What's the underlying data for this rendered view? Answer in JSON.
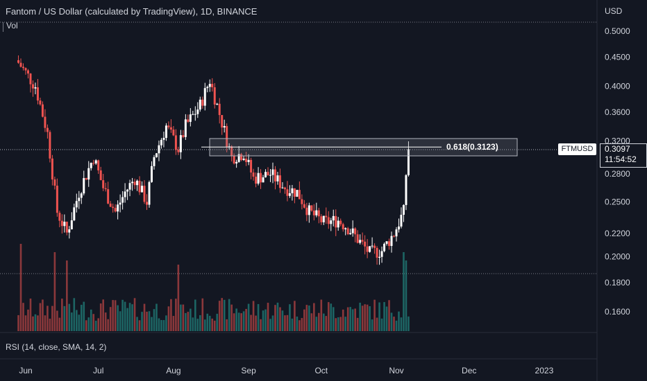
{
  "header": {
    "title": "Fantom / US Dollar (calculated by TradingView), 1D, BINANCE",
    "volume_label": "Vol",
    "currency_label": "USD",
    "indicator_label": "RSI (14, close, SMA, 14, 2)"
  },
  "price_axis": {
    "ticks": [
      "0.5000",
      "0.4500",
      "0.4000",
      "0.3600",
      "0.3200",
      "0.2800",
      "0.2500",
      "0.2200",
      "0.2000",
      "0.1800",
      "0.1600"
    ],
    "ticker": "FTMUSD",
    "last_price": "0.3097",
    "countdown": "11:54:52"
  },
  "time_axis": {
    "ticks": [
      "Jun",
      "Jul",
      "Aug",
      "Sep",
      "Oct",
      "Nov",
      "Dec",
      "2023"
    ]
  },
  "fib": {
    "label": "0.618(0.3123)",
    "level": 0.3123
  },
  "colors": {
    "background": "#131722",
    "up": "#ffffff",
    "down": "#ef5350",
    "vol_up": "#26a69a",
    "vol_down": "#ef5350"
  },
  "chart_data": {
    "type": "candlestick",
    "scale": "log",
    "ylim": [
      0.145,
      0.55
    ],
    "key_points": [
      {
        "date": "2022-05-29",
        "close": 0.44
      },
      {
        "date": "2022-06-05",
        "close": 0.4
      },
      {
        "date": "2022-06-10",
        "close": 0.33
      },
      {
        "date": "2022-06-14",
        "close": 0.24
      },
      {
        "date": "2022-06-18",
        "close": 0.22
      },
      {
        "date": "2022-06-23",
        "close": 0.26
      },
      {
        "date": "2022-06-29",
        "close": 0.3
      },
      {
        "date": "2022-07-03",
        "close": 0.265
      },
      {
        "date": "2022-07-08",
        "close": 0.24
      },
      {
        "date": "2022-07-12",
        "close": 0.26
      },
      {
        "date": "2022-07-16",
        "close": 0.275
      },
      {
        "date": "2022-07-21",
        "close": 0.25
      },
      {
        "date": "2022-07-24",
        "close": 0.3
      },
      {
        "date": "2022-07-29",
        "close": 0.34
      },
      {
        "date": "2022-08-03",
        "close": 0.31
      },
      {
        "date": "2022-08-06",
        "close": 0.34
      },
      {
        "date": "2022-08-12",
        "close": 0.37
      },
      {
        "date": "2022-08-16",
        "close": 0.41
      },
      {
        "date": "2022-08-21",
        "close": 0.345
      },
      {
        "date": "2022-08-25",
        "close": 0.3
      },
      {
        "date": "2022-08-30",
        "close": 0.305
      },
      {
        "date": "2022-09-03",
        "close": 0.275
      },
      {
        "date": "2022-09-10",
        "close": 0.28
      },
      {
        "date": "2022-09-16",
        "close": 0.265
      },
      {
        "date": "2022-09-21",
        "close": 0.26
      },
      {
        "date": "2022-09-26",
        "close": 0.24
      },
      {
        "date": "2022-10-02",
        "close": 0.23
      },
      {
        "date": "2022-10-08",
        "close": 0.232
      },
      {
        "date": "2022-10-12",
        "close": 0.225
      },
      {
        "date": "2022-10-18",
        "close": 0.21
      },
      {
        "date": "2022-10-21",
        "close": 0.203
      },
      {
        "date": "2022-10-26",
        "close": 0.205
      },
      {
        "date": "2022-10-31",
        "close": 0.22
      },
      {
        "date": "2022-11-03",
        "close": 0.235
      },
      {
        "date": "2022-11-04",
        "close": 0.24
      },
      {
        "date": "2022-11-05",
        "close": 0.28
      },
      {
        "date": "2022-11-06",
        "close": 0.3097
      }
    ]
  }
}
